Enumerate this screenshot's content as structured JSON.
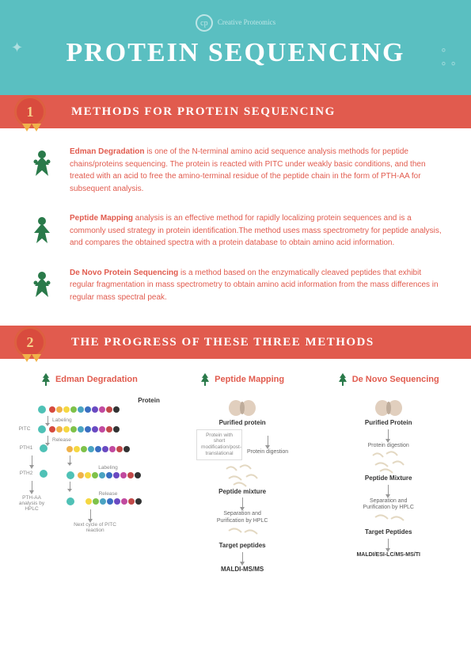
{
  "brand": {
    "name": "Creative\nProteomics"
  },
  "title": "PROTEIN SEQUENCING",
  "section1": {
    "badge": "1",
    "title": "METHODS FOR PROTEIN SEQUENCING"
  },
  "methods": [
    {
      "bold": "Edman Degradation",
      "text": " is one of the N-terminal amino acid sequence analysis methods for peptide chains/proteins sequencing. The protein is reacted with PITC under weakly basic conditions, and then treated with an acid to free the amino-terminal residue of the peptide chain in the form of PTH-AA for subsequent analysis."
    },
    {
      "bold": "Peptide Mapping",
      "text": " analysis is an effective method for rapidly localizing protein sequences and is a commonly used strategy in protein identification.The method uses mass spectrometry for peptide analysis, and compares the obtained spectra with a protein database to obtain amino acid information."
    },
    {
      "bold": "De Novo Protein Sequencing",
      "text": " is a method based on the enzymatically cleaved peptides that exhibit regular fragmentation in mass spectrometry to obtain amino acid information from the mass differences in regular mass spectral peak."
    }
  ],
  "section2": {
    "badge": "2",
    "title": "THE PROGRESS OF THESE THREE METHODS"
  },
  "columns": {
    "edman": {
      "title": "Edman Degradation",
      "labels": {
        "protein": "Protein",
        "labeling": "Labeling",
        "release": "Release",
        "pitc": "PITC",
        "pth1": "PTH1",
        "pth2": "PTH2",
        "hplc": "PTH-AA analysis by HPLC",
        "next": "Next cycle of PITC reaction"
      },
      "bead_colors": [
        "#d64a3e",
        "#f0b24a",
        "#f5d742",
        "#7fc24a",
        "#4aa3c2",
        "#3a6fc2",
        "#6a4ac2",
        "#c24a9f",
        "#c24a4a",
        "#333333"
      ]
    },
    "mapping": {
      "title": "Peptide Mapping",
      "steps": {
        "s1": "Purified protein",
        "box": "Protein with short modification/post-translational",
        "s2": "Protein digestion",
        "s3": "Peptide mixture",
        "s4": "Separation and Purification by HPLC",
        "s5": "Target peptides",
        "s6": "MALDI-MS/MS"
      }
    },
    "denovo": {
      "title": "De Novo Sequencing",
      "steps": {
        "s1": "Purified Protein",
        "s2": "Protein digestion",
        "s3": "Peptide Mixture",
        "s4": "Separation and Purification by HPLC",
        "s5": "Target Peptides",
        "s6": "MALDI/ESI-LC/MS-MS/TI"
      }
    }
  }
}
